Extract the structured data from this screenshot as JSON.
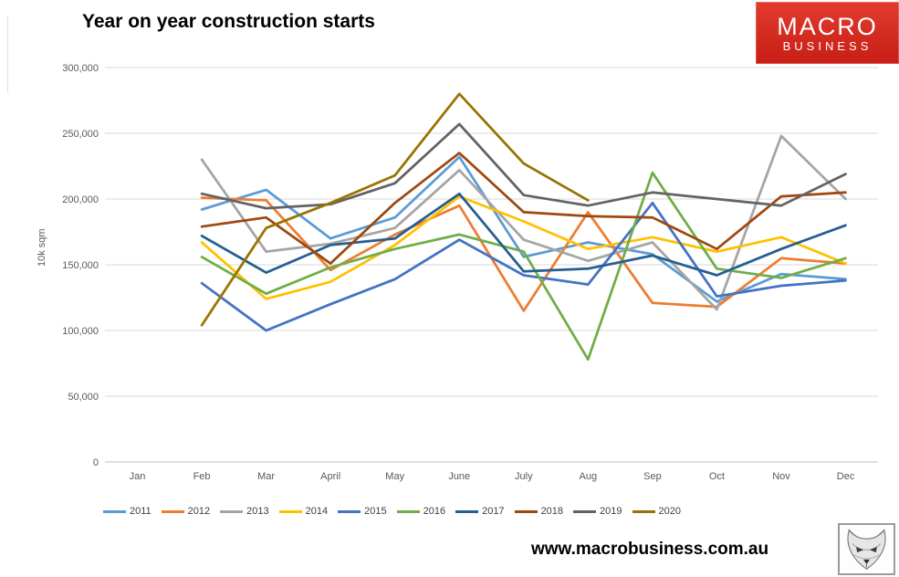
{
  "page": {
    "footer_url": "www.macrobusiness.com.au"
  },
  "logo": {
    "line1": "MACRO",
    "line2": "BUSINESS",
    "bg_color": "#d2271c"
  },
  "chart_data": {
    "type": "line",
    "title": "Year on year construction starts",
    "xlabel": "",
    "ylabel": "10k sqm",
    "ylim": [
      0,
      300000
    ],
    "grid": "horizontal",
    "legend_position": "bottom",
    "categories": [
      "Jan",
      "Feb",
      "Mar",
      "April",
      "May",
      "June",
      "July",
      "Aug",
      "Sep",
      "Oct",
      "Nov",
      "Dec"
    ],
    "y_ticks": [
      {
        "v": 0,
        "label": "0"
      },
      {
        "v": 50000,
        "label": "50,000"
      },
      {
        "v": 100000,
        "label": "100,000"
      },
      {
        "v": 150000,
        "label": "150,000"
      },
      {
        "v": 200000,
        "label": "200,000"
      },
      {
        "v": 250000,
        "label": "250,000"
      },
      {
        "v": 300000,
        "label": "300,000"
      }
    ],
    "series_start_category": "Feb",
    "series": [
      {
        "name": "2011",
        "color": "#5B9BD5",
        "values": [
          192000,
          207000,
          170000,
          186000,
          232000,
          156000,
          167000,
          158000,
          122000,
          143000,
          139000
        ]
      },
      {
        "name": "2012",
        "color": "#ED7D31",
        "values": [
          201000,
          199000,
          146000,
          173000,
          195000,
          115000,
          190000,
          121000,
          118000,
          155000,
          151000
        ]
      },
      {
        "name": "2013",
        "color": "#A5A5A5",
        "values": [
          230000,
          160000,
          166000,
          178000,
          222000,
          169000,
          153000,
          167000,
          116000,
          248000,
          200000
        ]
      },
      {
        "name": "2014",
        "color": "#FFC000",
        "values": [
          167000,
          124000,
          137000,
          165000,
          202000,
          183000,
          162000,
          171000,
          160000,
          171000,
          151000
        ]
      },
      {
        "name": "2015",
        "color": "#4472C4",
        "values": [
          136000,
          100000,
          120000,
          139000,
          169000,
          142000,
          135000,
          197000,
          126000,
          134000,
          138000
        ]
      },
      {
        "name": "2016",
        "color": "#70AD47",
        "values": [
          156000,
          128000,
          148000,
          162000,
          173000,
          160000,
          78000,
          220000,
          147000,
          140000,
          155000
        ]
      },
      {
        "name": "2017",
        "color": "#255E91",
        "values": [
          172000,
          144000,
          165000,
          170000,
          204000,
          145000,
          147000,
          157000,
          142000,
          162000,
          180000
        ]
      },
      {
        "name": "2018",
        "color": "#9E480E",
        "values": [
          179000,
          186000,
          151000,
          197000,
          235000,
          190000,
          187000,
          186000,
          162000,
          202000,
          205000
        ]
      },
      {
        "name": "2019",
        "color": "#636363",
        "values": [
          204000,
          193000,
          196000,
          212000,
          257000,
          203000,
          195000,
          205000,
          200000,
          195000,
          219000
        ]
      },
      {
        "name": "2020",
        "color": "#997300",
        "values": [
          104000,
          178000,
          197000,
          218000,
          280000,
          227000,
          199000
        ]
      }
    ]
  }
}
